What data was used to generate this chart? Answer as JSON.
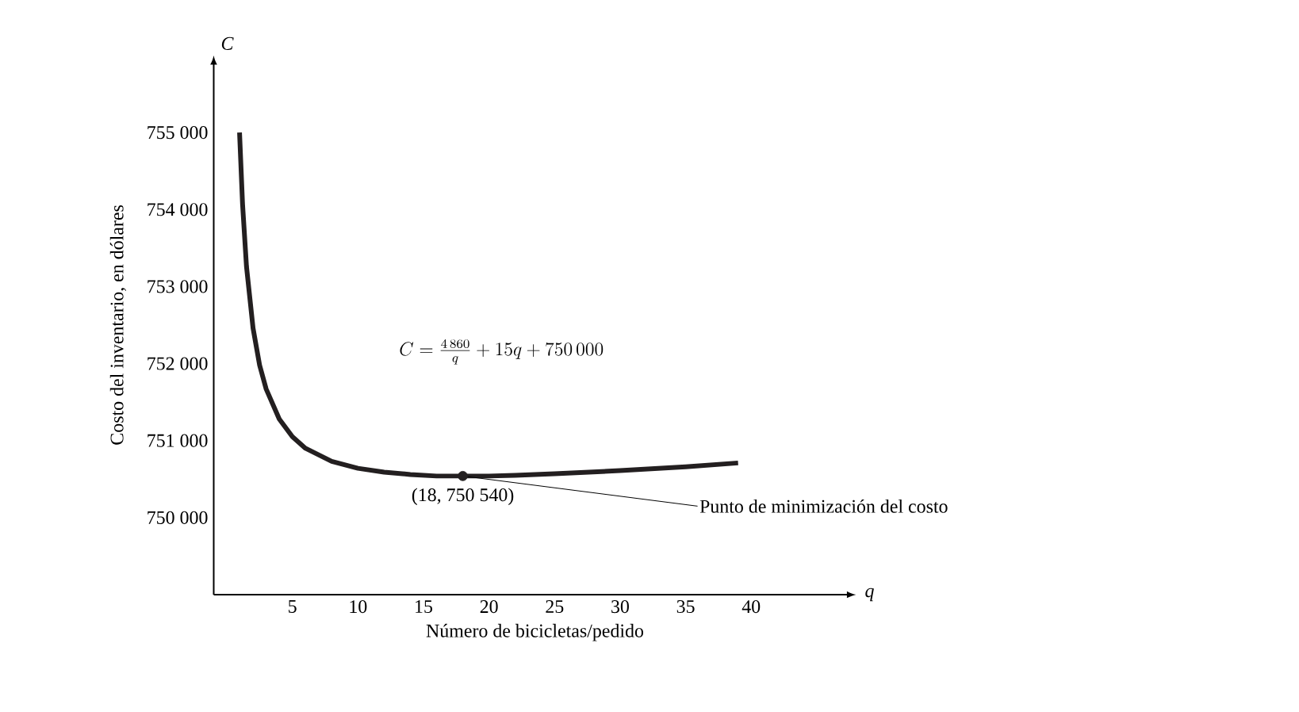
{
  "chart_data": {
    "type": "line",
    "xlabel": "Número de bicicletas/pedido",
    "ylabel": "Costo del inventario, en dólares",
    "x": [
      0.97,
      1.2,
      1.5,
      2,
      2.5,
      3,
      4,
      5,
      6,
      8,
      10,
      12,
      14,
      16,
      18,
      20,
      22,
      25,
      30,
      35,
      39
    ],
    "series": [
      {
        "color": "#231f20",
        "marker": "none",
        "values": [
          755000,
          754070,
          753260,
          752460,
          751980,
          751670,
          751280,
          751050,
          750900,
          750730,
          750640,
          750590,
          750560,
          750540,
          750540,
          750540,
          750550,
          750570,
          750610,
          750660,
          750710
        ]
      },
      {
        "type": "scatter",
        "x": [
          18
        ],
        "color": "#231f20",
        "marker": "circle",
        "values": [
          750540
        ]
      }
    ],
    "xlim": [
      -1,
      48
    ],
    "ylim": [
      749000,
      756000
    ],
    "xticks": [
      5,
      10,
      15,
      20,
      25,
      30,
      35,
      40
    ],
    "yticks": [
      {
        "value": 750000,
        "label": "750 000"
      },
      {
        "value": 751000,
        "label": "751 000"
      },
      {
        "value": 752000,
        "label": "752 000"
      },
      {
        "value": 753000,
        "label": "753 000"
      },
      {
        "value": 754000,
        "label": "754 000"
      },
      {
        "value": 755000,
        "label": "755 000"
      }
    ],
    "grid": false,
    "line_style": "solid",
    "annotations": [
      "C",
      "q",
      "C = \\frac{4\\,860}{q} + 15q + 750\\,000",
      {
        "text": "(18, 750 540)",
        "x": 18,
        "y": 750540
      },
      {
        "text": "Punto de minimización del costo",
        "x": 18,
        "y": 750540
      }
    ]
  }
}
